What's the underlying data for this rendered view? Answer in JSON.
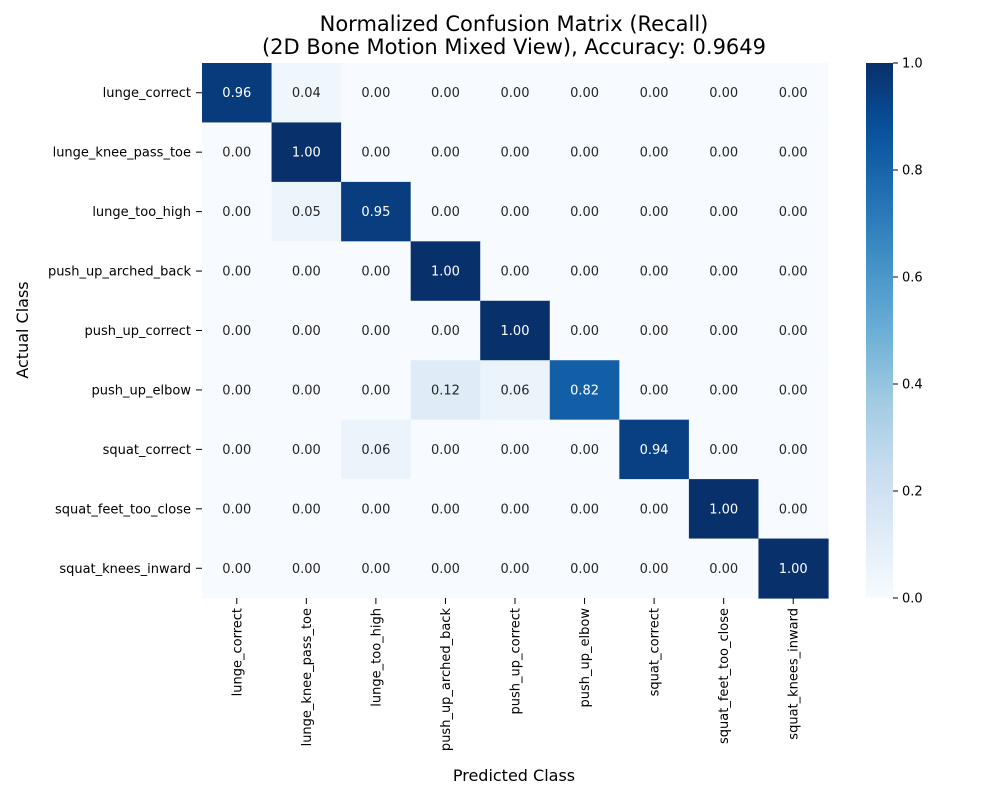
{
  "chart_data": {
    "type": "heatmap",
    "title_line1": "Normalized Confusion Matrix (Recall)",
    "title_line2": "(2D Bone Motion Mixed View), Accuracy: 0.9649",
    "xlabel": "Predicted Class",
    "ylabel": "Actual Class",
    "classes": [
      "lunge_correct",
      "lunge_knee_pass_toe",
      "lunge_too_high",
      "push_up_arched_back",
      "push_up_correct",
      "push_up_elbow",
      "squat_correct",
      "squat_feet_too_close",
      "squat_knees_inward"
    ],
    "values": [
      [
        0.96,
        0.04,
        0.0,
        0.0,
        0.0,
        0.0,
        0.0,
        0.0,
        0.0
      ],
      [
        0.0,
        1.0,
        0.0,
        0.0,
        0.0,
        0.0,
        0.0,
        0.0,
        0.0
      ],
      [
        0.0,
        0.05,
        0.95,
        0.0,
        0.0,
        0.0,
        0.0,
        0.0,
        0.0
      ],
      [
        0.0,
        0.0,
        0.0,
        1.0,
        0.0,
        0.0,
        0.0,
        0.0,
        0.0
      ],
      [
        0.0,
        0.0,
        0.0,
        0.0,
        1.0,
        0.0,
        0.0,
        0.0,
        0.0
      ],
      [
        0.0,
        0.0,
        0.0,
        0.12,
        0.06,
        0.82,
        0.0,
        0.0,
        0.0
      ],
      [
        0.0,
        0.0,
        0.06,
        0.0,
        0.0,
        0.0,
        0.94,
        0.0,
        0.0
      ],
      [
        0.0,
        0.0,
        0.0,
        0.0,
        0.0,
        0.0,
        0.0,
        1.0,
        0.0
      ],
      [
        0.0,
        0.0,
        0.0,
        0.0,
        0.0,
        0.0,
        0.0,
        0.0,
        1.0
      ]
    ],
    "value_format": "2 decimals",
    "colormap": "Blues",
    "colorbar": {
      "range": [
        0.0,
        1.0
      ],
      "ticks": [
        0.0,
        0.2,
        0.4,
        0.6,
        0.8,
        1.0
      ],
      "tick_labels": [
        "0.0",
        "0.2",
        "0.4",
        "0.6",
        "0.8",
        "1.0"
      ]
    }
  }
}
